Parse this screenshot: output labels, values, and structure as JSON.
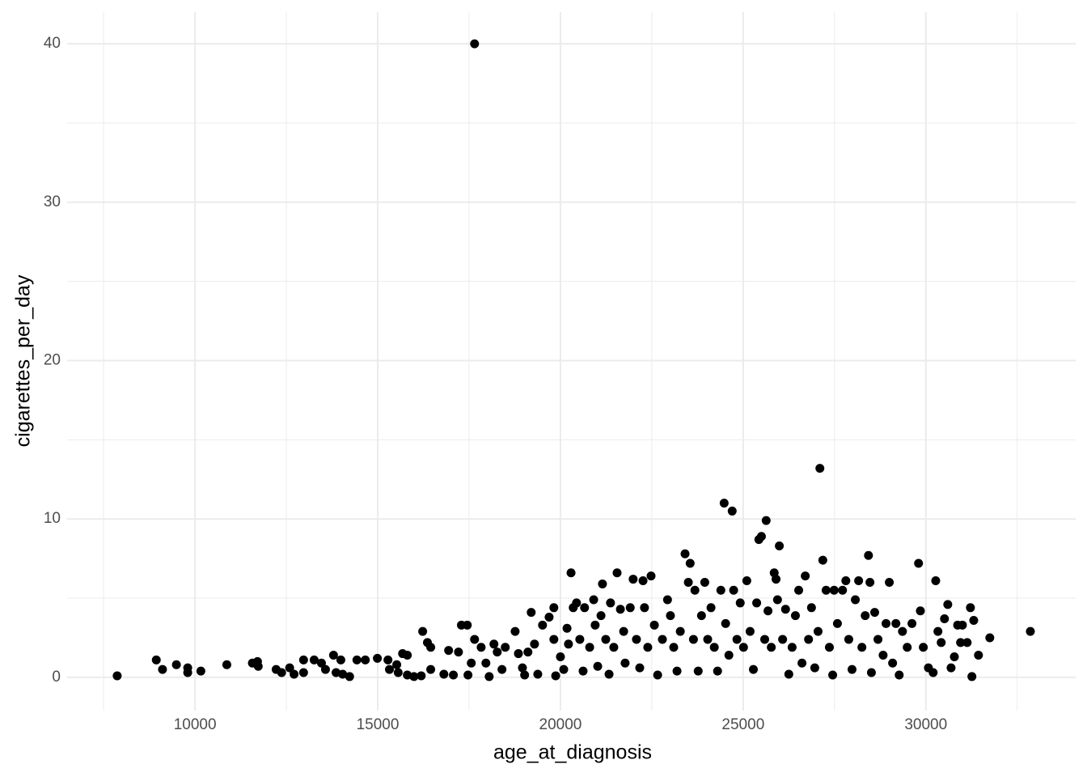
{
  "chart_data": {
    "type": "scatter",
    "x_label": "age_at_diagnosis",
    "y_label": "cigarettes_per_day",
    "color": "#000000",
    "grid": true,
    "xlim": [
      6500,
      34100
    ],
    "ylim": [
      -2.1,
      42
    ],
    "xticks": [
      10000,
      15000,
      20000,
      25000,
      30000
    ],
    "yticks": [
      0,
      10,
      20,
      30,
      40
    ],
    "x": [
      7870,
      8940,
      9110,
      9490,
      9800,
      9800,
      10160,
      10870,
      11570,
      11710,
      11730,
      12220,
      12370,
      12590,
      12710,
      12970,
      12970,
      13260,
      13460,
      13570,
      13790,
      13860,
      13990,
      14040,
      14230,
      14430,
      14660,
      14990,
      15280,
      15320,
      15520,
      15560,
      15680,
      15810,
      15810,
      15990,
      16190,
      16230,
      16360,
      16450,
      16450,
      16810,
      16940,
      17070,
      17210,
      17290,
      17450,
      17470,
      17650,
      17650,
      17560,
      17830,
      17960,
      18050,
      18180,
      18270,
      18400,
      18490,
      18760,
      18850,
      18960,
      19020,
      19110,
      19200,
      19290,
      19380,
      19510,
      19690,
      19820,
      19820,
      19870,
      20000,
      20090,
      20180,
      20220,
      20290,
      20350,
      20440,
      20530,
      20620,
      20660,
      20800,
      20910,
      20950,
      21020,
      21110,
      21150,
      21240,
      21330,
      21370,
      21460,
      21550,
      21640,
      21730,
      21770,
      21910,
      21990,
      22080,
      22170,
      22260,
      22300,
      22390,
      22480,
      22570,
      22660,
      22790,
      22930,
      23010,
      23100,
      23190,
      23280,
      23410,
      23500,
      23550,
      23640,
      23680,
      23770,
      23860,
      23950,
      24030,
      24120,
      24210,
      24300,
      24390,
      24480,
      24520,
      24610,
      24700,
      24740,
      24830,
      24920,
      25010,
      25100,
      25190,
      25280,
      25370,
      25430,
      25500,
      25590,
      25630,
      25680,
      25770,
      25850,
      25900,
      25940,
      25990,
      26080,
      26160,
      26250,
      26340,
      26430,
      26520,
      26610,
      26700,
      26790,
      26870,
      26960,
      27050,
      27100,
      27180,
      27270,
      27360,
      27450,
      27490,
      27580,
      27720,
      27810,
      27890,
      27980,
      28070,
      28160,
      28250,
      28340,
      28430,
      28470,
      28510,
      28600,
      28690,
      28830,
      28910,
      29000,
      29090,
      29180,
      29270,
      29360,
      29490,
      29620,
      29800,
      29850,
      29930,
      30070,
      30200,
      30270,
      30330,
      30420,
      30510,
      30600,
      30690,
      30780,
      30870,
      30950,
      31000,
      31130,
      31220,
      31260,
      31310,
      31440,
      31750,
      32860
    ],
    "values": [
      0.1,
      1.1,
      0.5,
      0.8,
      0.6,
      0.3,
      0.4,
      0.8,
      0.9,
      1.0,
      0.7,
      0.5,
      0.3,
      0.6,
      0.2,
      1.1,
      0.3,
      1.1,
      0.9,
      0.5,
      1.4,
      0.3,
      1.1,
      0.2,
      0.05,
      1.1,
      1.1,
      1.2,
      1.1,
      0.5,
      0.8,
      0.3,
      1.5,
      0.15,
      1.4,
      0.05,
      0.1,
      2.9,
      2.2,
      1.9,
      0.5,
      0.2,
      1.7,
      0.15,
      1.6,
      3.3,
      3.3,
      0.15,
      40,
      2.4,
      0.9,
      1.9,
      0.9,
      0.05,
      2.1,
      1.6,
      0.5,
      1.9,
      2.9,
      1.5,
      0.6,
      0.15,
      1.6,
      4.1,
      2.1,
      0.2,
      3.3,
      3.8,
      2.4,
      4.4,
      0.1,
      1.3,
      0.5,
      3.1,
      2.1,
      6.6,
      4.4,
      4.7,
      2.4,
      0.4,
      4.4,
      1.9,
      4.9,
      3.3,
      0.7,
      3.9,
      5.9,
      2.4,
      0.2,
      4.7,
      1.9,
      6.6,
      4.3,
      2.9,
      0.9,
      4.4,
      6.2,
      2.4,
      0.6,
      6.1,
      4.4,
      1.9,
      6.4,
      3.3,
      0.15,
      2.4,
      4.9,
      3.9,
      1.9,
      0.4,
      2.9,
      7.8,
      6.0,
      7.2,
      2.4,
      5.5,
      0.4,
      3.9,
      6.0,
      2.4,
      4.4,
      1.9,
      0.4,
      5.5,
      11.0,
      3.4,
      1.4,
      10.5,
      5.5,
      2.4,
      4.7,
      1.9,
      6.1,
      2.9,
      0.5,
      4.7,
      8.7,
      8.9,
      2.4,
      9.9,
      4.2,
      1.9,
      6.6,
      6.2,
      4.9,
      8.3,
      2.4,
      4.3,
      0.2,
      1.9,
      3.9,
      5.5,
      0.9,
      6.4,
      2.4,
      4.4,
      0.6,
      2.9,
      13.2,
      7.4,
      5.5,
      1.9,
      0.15,
      5.5,
      3.4,
      5.5,
      6.1,
      2.4,
      0.5,
      4.9,
      6.1,
      1.9,
      3.9,
      7.7,
      6.0,
      0.3,
      4.1,
      2.4,
      1.4,
      3.4,
      6.0,
      0.9,
      3.4,
      0.15,
      2.9,
      1.9,
      3.4,
      7.2,
      4.2,
      1.9,
      0.6,
      0.3,
      6.1,
      2.9,
      2.2,
      3.7,
      4.6,
      0.6,
      1.3,
      3.3,
      2.2,
      3.3,
      2.2,
      4.4,
      0.05,
      3.6,
      1.4,
      2.5,
      2.9
    ]
  }
}
